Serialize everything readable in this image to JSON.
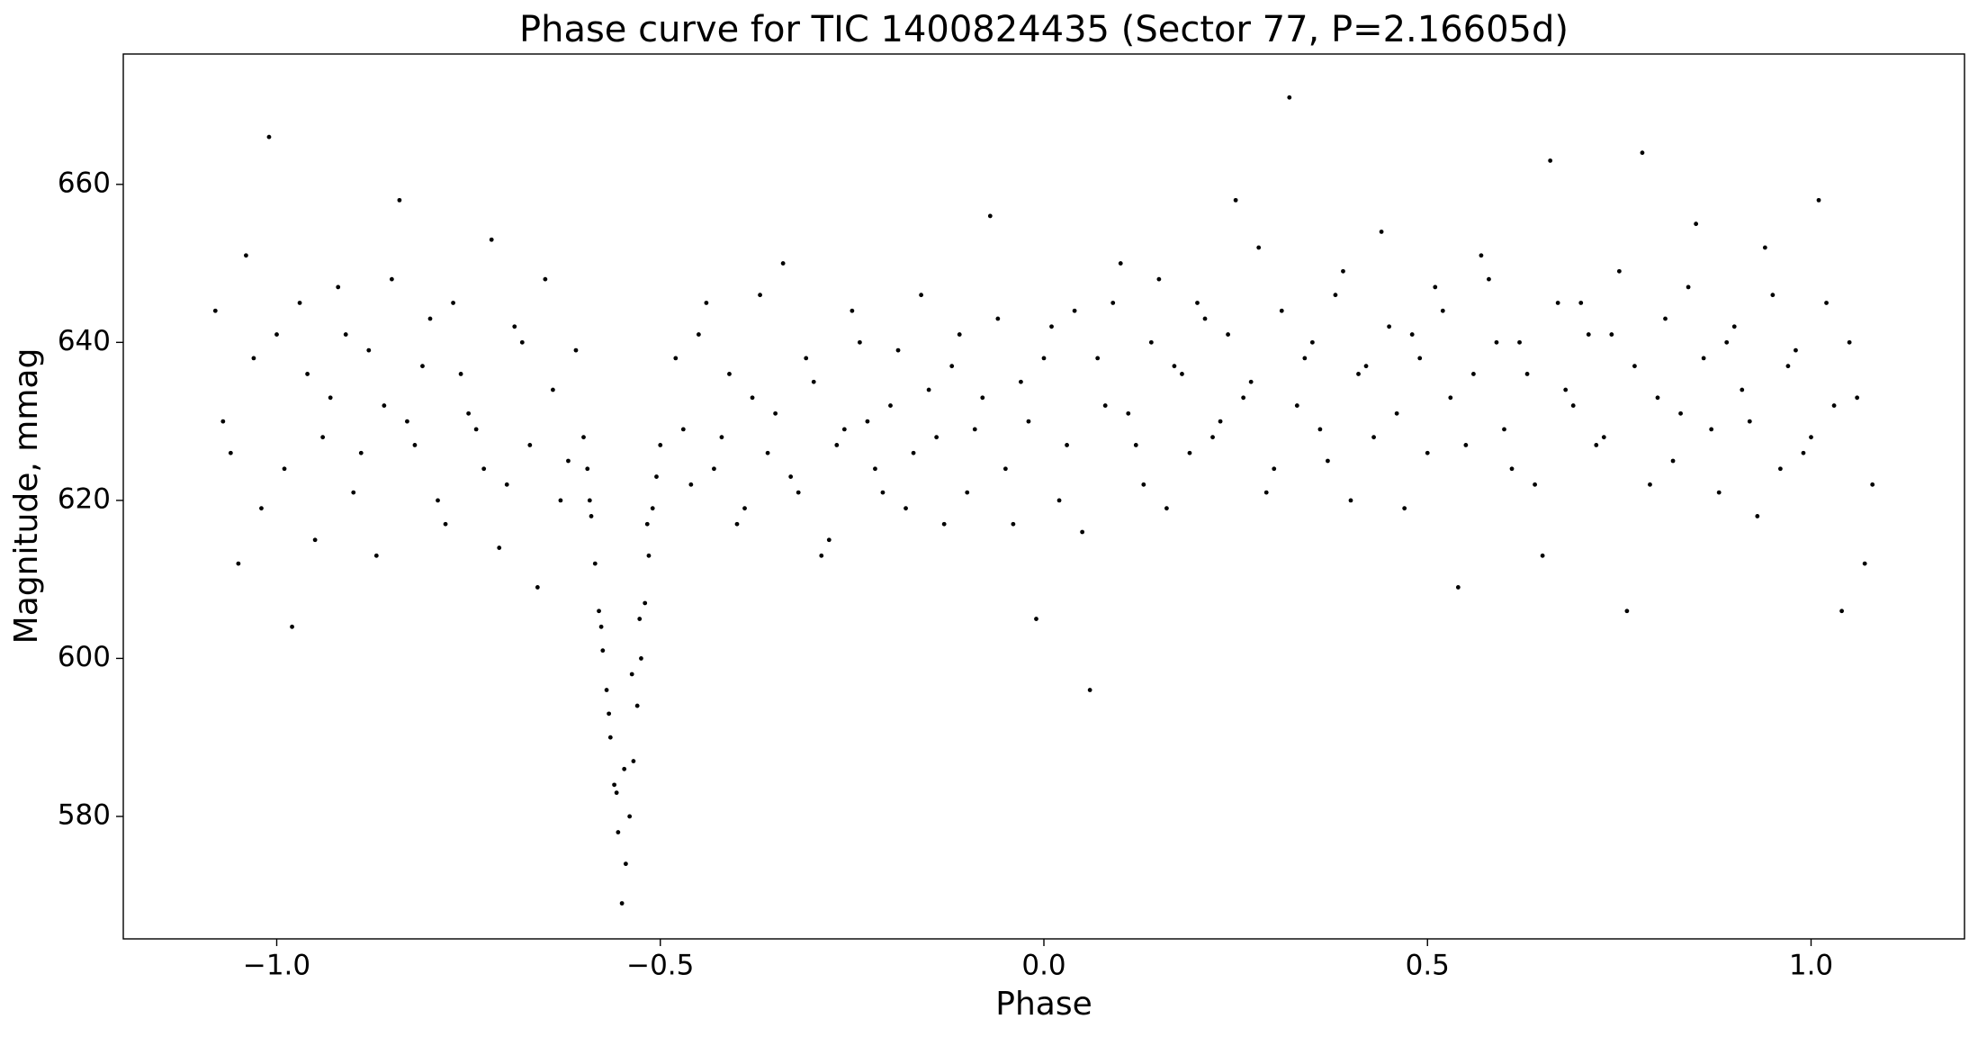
{
  "chart_data": {
    "type": "scatter",
    "title": "Phase curve for TIC 1400824435 (Sector 77, P=2.16605d)",
    "xlabel": "Phase",
    "ylabel": "Magnitude, mmag",
    "color": "#000000",
    "xlim": [
      -1.2,
      1.2
    ],
    "ylim": [
      564.5,
      676.5
    ],
    "xticks": [
      {
        "value": -1.0,
        "label": "−1.0"
      },
      {
        "value": -0.5,
        "label": "−0.5"
      },
      {
        "value": 0.0,
        "label": "0.0"
      },
      {
        "value": 0.5,
        "label": "0.5"
      },
      {
        "value": 1.0,
        "label": "1.0"
      }
    ],
    "yticks": [
      580,
      600,
      620,
      640,
      660
    ],
    "x": [
      -1.08,
      -1.06,
      -1.04,
      -1.02,
      -1.0,
      -0.98,
      -0.96,
      -0.94,
      -0.92,
      -0.9,
      -0.88,
      -0.86,
      -0.84,
      -0.82,
      -0.8,
      -0.78,
      -0.76,
      -0.74,
      -0.72,
      -0.7,
      -0.68,
      -0.66,
      -0.64,
      -0.62,
      -1.07,
      -1.05,
      -1.03,
      -1.01,
      -0.99,
      -0.97,
      -0.95,
      -0.93,
      -0.91,
      -0.89,
      -0.87,
      -0.85,
      -0.83,
      -0.81,
      -0.79,
      -0.77,
      -0.75,
      -0.73,
      -0.71,
      -0.69,
      -0.67,
      -0.65,
      -0.63,
      -0.61,
      -0.6,
      -0.595,
      -0.59,
      -0.585,
      -0.58,
      -0.575,
      -0.57,
      -0.565,
      -0.56,
      -0.555,
      -0.55,
      -0.545,
      -0.54,
      -0.535,
      -0.53,
      -0.525,
      -0.52,
      -0.515,
      -0.51,
      -0.505,
      -0.5,
      -0.592,
      -0.577,
      -0.567,
      -0.557,
      -0.547,
      -0.537,
      -0.527,
      -0.517,
      -0.48,
      -0.46,
      -0.44,
      -0.42,
      -0.4,
      -0.38,
      -0.36,
      -0.34,
      -0.32,
      -0.3,
      -0.28,
      -0.26,
      -0.24,
      -0.22,
      -0.2,
      -0.18,
      -0.16,
      -0.14,
      -0.12,
      -0.1,
      -0.08,
      -0.06,
      -0.04,
      -0.02,
      0.0,
      0.02,
      0.04,
      0.06,
      0.08,
      0.1,
      0.12,
      0.14,
      0.16,
      0.18,
      0.2,
      0.22,
      0.24,
      0.26,
      0.28,
      0.3,
      0.32,
      0.34,
      0.36,
      0.38,
      0.4,
      0.42,
      0.44,
      0.46,
      0.48,
      0.5,
      0.52,
      0.54,
      0.56,
      0.58,
      0.6,
      0.62,
      0.64,
      0.66,
      0.68,
      0.7,
      0.72,
      0.74,
      0.76,
      0.78,
      0.8,
      0.82,
      0.84,
      0.86,
      0.88,
      0.9,
      0.92,
      0.94,
      0.96,
      0.98,
      1.0,
      1.02,
      1.04,
      1.06,
      1.08,
      -0.47,
      -0.45,
      -0.43,
      -0.41,
      -0.39,
      -0.37,
      -0.35,
      -0.33,
      -0.31,
      -0.29,
      -0.27,
      -0.25,
      -0.23,
      -0.21,
      -0.19,
      -0.17,
      -0.15,
      -0.13,
      -0.11,
      -0.09,
      -0.07,
      -0.05,
      -0.03,
      -0.01,
      0.01,
      0.03,
      0.05,
      0.07,
      0.09,
      0.11,
      0.13,
      0.15,
      0.17,
      0.19,
      0.21,
      0.23,
      0.25,
      0.27,
      0.29,
      0.31,
      0.33,
      0.35,
      0.37,
      0.39,
      0.41,
      0.43,
      0.45,
      0.47,
      0.49,
      0.51,
      0.53,
      0.55,
      0.57,
      0.59,
      0.61,
      0.63,
      0.65,
      0.67,
      0.69,
      0.71,
      0.73,
      0.75,
      0.77,
      0.79,
      0.81,
      0.83,
      0.85,
      0.87,
      0.89,
      0.91,
      0.93,
      0.95,
      0.97,
      0.99,
      1.01,
      1.03,
      1.05,
      1.07
    ],
    "values": [
      644,
      626,
      651,
      619,
      641,
      604,
      636,
      628,
      647,
      621,
      639,
      632,
      658,
      627,
      643,
      617,
      636,
      629,
      653,
      622,
      640,
      609,
      634,
      625,
      630,
      612,
      638,
      666,
      624,
      645,
      615,
      633,
      641,
      626,
      613,
      648,
      630,
      637,
      620,
      645,
      631,
      624,
      614,
      642,
      627,
      648,
      620,
      639,
      628,
      624,
      618,
      612,
      606,
      601,
      596,
      590,
      584,
      578,
      569,
      574,
      580,
      587,
      594,
      600,
      607,
      613,
      619,
      623,
      627,
      620,
      604,
      593,
      583,
      586,
      598,
      605,
      617,
      638,
      622,
      645,
      628,
      617,
      633,
      626,
      650,
      621,
      635,
      615,
      629,
      640,
      624,
      632,
      619,
      646,
      628,
      637,
      621,
      633,
      643,
      617,
      630,
      638,
      620,
      644,
      596,
      632,
      650,
      627,
      640,
      619,
      636,
      645,
      628,
      641,
      633,
      652,
      624,
      671,
      638,
      629,
      646,
      620,
      637,
      654,
      631,
      641,
      626,
      644,
      609,
      636,
      648,
      629,
      640,
      622,
      663,
      634,
      645,
      627,
      641,
      606,
      664,
      633,
      625,
      647,
      638,
      621,
      642,
      630,
      652,
      624,
      639,
      628,
      645,
      606,
      633,
      622,
      629,
      641,
      624,
      636,
      619,
      646,
      631,
      623,
      638,
      613,
      627,
      644,
      630,
      621,
      639,
      626,
      634,
      617,
      641,
      629,
      656,
      624,
      635,
      605,
      642,
      627,
      616,
      638,
      645,
      631,
      622,
      648,
      637,
      626,
      643,
      630,
      658,
      635,
      621,
      644,
      632,
      640,
      625,
      649,
      636,
      628,
      642,
      619,
      638,
      647,
      633,
      627,
      651,
      640,
      624,
      636,
      613,
      645,
      632,
      641,
      628,
      649,
      637,
      622,
      643,
      631,
      655,
      629,
      640,
      634,
      618,
      646,
      637,
      626,
      658,
      632,
      640,
      612
    ]
  }
}
